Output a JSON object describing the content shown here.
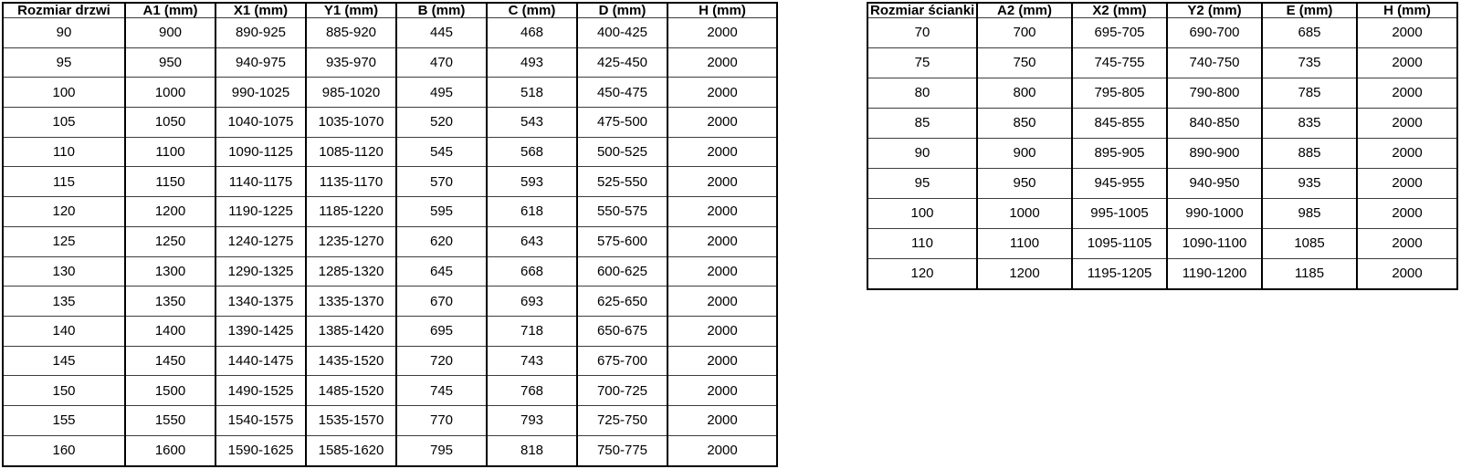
{
  "page": {
    "background_color": "#ffffff",
    "text_color": "#000000",
    "border_color": "#000000"
  },
  "tables": [
    {
      "name": "door-size-table",
      "headers": [
        "Rozmiar drzwi",
        "A1 (mm)",
        "X1 (mm)",
        "Y1 (mm)",
        "B (mm)",
        "C (mm)",
        "D (mm)",
        "H (mm)"
      ],
      "rows": [
        [
          "90",
          "900",
          "890-925",
          "885-920",
          "445",
          "468",
          "400-425",
          "2000"
        ],
        [
          "95",
          "950",
          "940-975",
          "935-970",
          "470",
          "493",
          "425-450",
          "2000"
        ],
        [
          "100",
          "1000",
          "990-1025",
          "985-1020",
          "495",
          "518",
          "450-475",
          "2000"
        ],
        [
          "105",
          "1050",
          "1040-1075",
          "1035-1070",
          "520",
          "543",
          "475-500",
          "2000"
        ],
        [
          "110",
          "1100",
          "1090-1125",
          "1085-1120",
          "545",
          "568",
          "500-525",
          "2000"
        ],
        [
          "115",
          "1150",
          "1140-1175",
          "1135-1170",
          "570",
          "593",
          "525-550",
          "2000"
        ],
        [
          "120",
          "1200",
          "1190-1225",
          "1185-1220",
          "595",
          "618",
          "550-575",
          "2000"
        ],
        [
          "125",
          "1250",
          "1240-1275",
          "1235-1270",
          "620",
          "643",
          "575-600",
          "2000"
        ],
        [
          "130",
          "1300",
          "1290-1325",
          "1285-1320",
          "645",
          "668",
          "600-625",
          "2000"
        ],
        [
          "135",
          "1350",
          "1340-1375",
          "1335-1370",
          "670",
          "693",
          "625-650",
          "2000"
        ],
        [
          "140",
          "1400",
          "1390-1425",
          "1385-1420",
          "695",
          "718",
          "650-675",
          "2000"
        ],
        [
          "145",
          "1450",
          "1440-1475",
          "1435-1520",
          "720",
          "743",
          "675-700",
          "2000"
        ],
        [
          "150",
          "1500",
          "1490-1525",
          "1485-1520",
          "745",
          "768",
          "700-725",
          "2000"
        ],
        [
          "155",
          "1550",
          "1540-1575",
          "1535-1570",
          "770",
          "793",
          "725-750",
          "2000"
        ],
        [
          "160",
          "1600",
          "1590-1625",
          "1585-1620",
          "795",
          "818",
          "750-775",
          "2000"
        ]
      ]
    },
    {
      "name": "wall-size-table",
      "headers": [
        "Rozmiar ścianki",
        "A2 (mm)",
        "X2 (mm)",
        "Y2 (mm)",
        "E (mm)",
        "H (mm)"
      ],
      "rows": [
        [
          "70",
          "700",
          "695-705",
          "690-700",
          "685",
          "2000"
        ],
        [
          "75",
          "750",
          "745-755",
          "740-750",
          "735",
          "2000"
        ],
        [
          "80",
          "800",
          "795-805",
          "790-800",
          "785",
          "2000"
        ],
        [
          "85",
          "850",
          "845-855",
          "840-850",
          "835",
          "2000"
        ],
        [
          "90",
          "900",
          "895-905",
          "890-900",
          "885",
          "2000"
        ],
        [
          "95",
          "950",
          "945-955",
          "940-950",
          "935",
          "2000"
        ],
        [
          "100",
          "1000",
          "995-1005",
          "990-1000",
          "985",
          "2000"
        ],
        [
          "110",
          "1100",
          "1095-1105",
          "1090-1100",
          "1085",
          "2000"
        ],
        [
          "120",
          "1200",
          "1195-1205",
          "1190-1200",
          "1185",
          "2000"
        ]
      ]
    }
  ]
}
